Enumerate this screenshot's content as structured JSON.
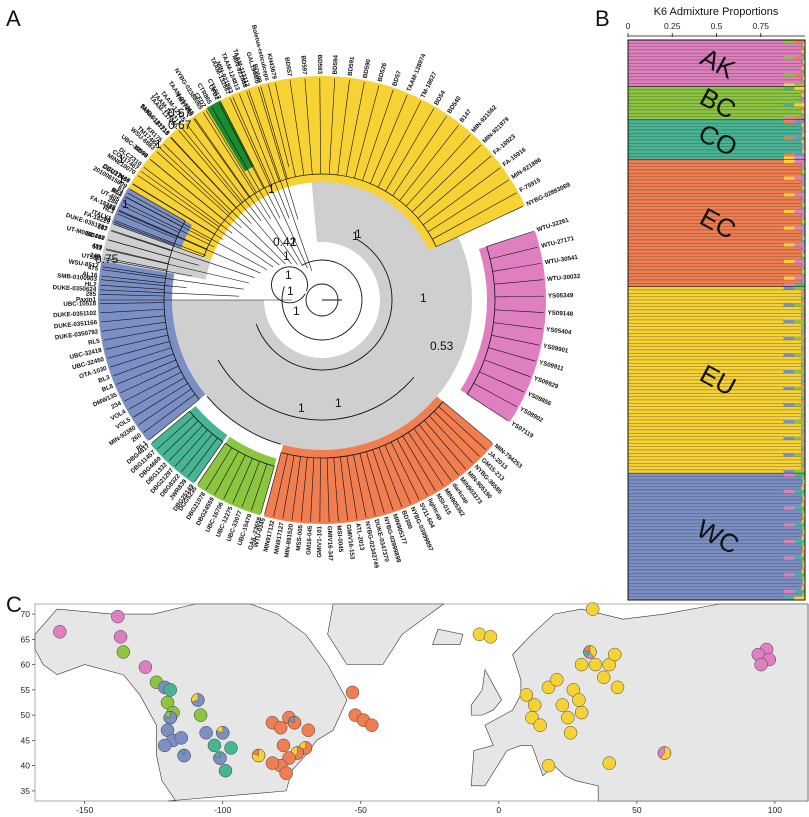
{
  "panels": {
    "a": "A",
    "b": "B",
    "c": "C"
  },
  "colors": {
    "AK": "#e07fc0",
    "BC": "#8cc540",
    "CO": "#47b494",
    "EC": "#f07e50",
    "EU": "#f7d234",
    "WC": "#7b8fc4",
    "dark_green": "#1a8c30",
    "grey": "#cfcfcf"
  },
  "tree": {
    "groups": [
      {
        "key": "EU",
        "tips": [
          "FA-18229",
          "FA-18228",
          "B53",
          "CCU17466",
          "CCU17467",
          "BD98",
          "TM17484",
          "TAAM-127216",
          "TAAM-127217",
          "TM17485",
          "CFD7",
          "CFD2",
          "MIN-921883",
          "MIN-921888",
          "BD599",
          "KH43679",
          "BD557",
          "BD597",
          "BD593",
          "BD594",
          "BD591",
          "BD590",
          "BD526",
          "BD57",
          "TAAM-128974",
          "TM-18627",
          "BD54",
          "BD540",
          "B147",
          "MIN-921562",
          "MIN-921979",
          "FA-18923",
          "FA-15916",
          "MIN-921886",
          "F-75915",
          "NYBG-02883069"
        ]
      },
      {
        "key": "AK",
        "tips": [
          "WTU-32261",
          "WTU-27171",
          "WTU-30541",
          "WTU-30032",
          "YS05349",
          "YS09148",
          "YS05404",
          "YS09901",
          "YS09911",
          "YS09929",
          "YS09856",
          "YS08902",
          "YS07119"
        ]
      },
      {
        "key": "EC",
        "tips": [
          "MIN-794253",
          "JA-2013",
          "GM15-213",
          "NYBG-36585",
          "MIN-905190",
          "MIN903373",
          "darkcap",
          "MIN905362",
          "MSI-015",
          "lightcap",
          "SV11-604",
          "NYBG-03999897",
          "BD300",
          "MIN905177",
          "NYBG-03999898",
          "DUKE-0347370",
          "NYBG-02342749",
          "ATL-2013",
          "GMIV16-153",
          "MSI-0045",
          "GMIV16-347",
          "GMIV1-101",
          "GM16-045",
          "MSS-005",
          "MIN-891520",
          "MIN917127",
          "MIN917132",
          "WTU-0345"
        ]
      },
      {
        "key": "BC",
        "tips": [
          "GAIL-23658",
          "UBC-15479",
          "UBC-33077",
          "UBC-12275",
          "UBC-16706",
          "DBG24559",
          "DBG21078",
          "DGG5235"
        ]
      },
      {
        "key": "CO",
        "tips": [
          "DBG25149",
          "JWR839",
          "DBG8322",
          "DBG21297",
          "DBG1332",
          "DBG4669",
          "DBG11457",
          "DBG4817"
        ]
      },
      {
        "key": "WC",
        "tips": [
          "RL1",
          "260",
          "MIN-92380",
          "VOL5",
          "VOL4",
          "234",
          "DMW135",
          "BL8",
          "BL3",
          "OTA-1030",
          "UBC-32450",
          "UBC-32418",
          "RL5",
          "DUKE-0350792",
          "DUKE-0351166",
          "DUKE-0351102",
          "UBC-10518",
          "285",
          "HL2",
          "AL16",
          "WSU-8517",
          "249",
          "489",
          "BD747",
          "567",
          "90",
          "HL3",
          "286",
          "RL2",
          "20100815009"
        ]
      }
    ],
    "outgroup_tips": [
      "Paxin1",
      "DUKE-0350624",
      "SMB-0100903",
      "475",
      "UT588",
      "511",
      "UT-M0000480",
      "DUKE-0351781",
      "ITALY1",
      "486",
      "UT-405",
      "81",
      "DBG21467",
      "MINE10070",
      "DLC2310",
      "UBC-30989",
      "WSU-6883",
      "KR175",
      "SMB-0181715",
      "TAAM-137090",
      "TAAM-12725",
      "TAAM-054015",
      "NYBG-02388065",
      "CTR865",
      "CT1817",
      "TAAM-132667",
      "TAAM-124813",
      "TAAM-113112",
      "GAL1944fb",
      "Boletus-reticulceps"
    ],
    "support": [
      "0.67",
      "0.67",
      "1",
      "1",
      "1",
      "1",
      "1",
      "0.42",
      "1",
      "0.75",
      "1",
      "1",
      "1",
      "1",
      "1",
      "0.53",
      "1",
      "1",
      "1",
      "1"
    ]
  },
  "admixture": {
    "title": "K6 Admixture Proportions",
    "ticks": [
      "0",
      "0.25",
      "0.5",
      "0.75"
    ],
    "tick_values": [
      0,
      0.25,
      0.5,
      0.75
    ],
    "clusters": [
      {
        "label": "AK",
        "color": "AK",
        "count": 14
      },
      {
        "label": "BC",
        "color": "BC",
        "count": 10
      },
      {
        "label": "CO",
        "color": "CO",
        "count": 12
      },
      {
        "label": "EC",
        "color": "EC",
        "count": 38
      },
      {
        "label": "EU",
        "color": "EU",
        "count": 56
      },
      {
        "label": "WC",
        "color": "WC",
        "count": 38
      }
    ]
  },
  "map": {
    "x_ticks": [
      -150,
      -100,
      -50,
      0,
      50,
      100
    ],
    "y_ticks": [
      35,
      40,
      45,
      50,
      55,
      60,
      65,
      70
    ],
    "x_range": [
      -168,
      112
    ],
    "y_range": [
      33,
      72
    ],
    "pies": [
      {
        "lon": -159,
        "lat": 66.5,
        "p": {
          "AK": 1
        }
      },
      {
        "lon": -138,
        "lat": 69.5,
        "p": {
          "AK": 1
        }
      },
      {
        "lon": -137,
        "lat": 65.5,
        "p": {
          "AK": 1
        }
      },
      {
        "lon": -136,
        "lat": 62.5,
        "p": {
          "BC": 1
        }
      },
      {
        "lon": -128,
        "lat": 59.5,
        "p": {
          "AK": 1
        }
      },
      {
        "lon": -124,
        "lat": 56.5,
        "p": {
          "BC": 1
        }
      },
      {
        "lon": -121,
        "lat": 55.5,
        "p": {
          "WC": 1
        }
      },
      {
        "lon": -119,
        "lat": 55,
        "p": {
          "CO": 1
        }
      },
      {
        "lon": -120,
        "lat": 52.5,
        "p": {
          "BC": 1
        }
      },
      {
        "lon": -118,
        "lat": 50.5,
        "p": {
          "BC": 1
        }
      },
      {
        "lon": -119,
        "lat": 49.5,
        "p": {
          "WC": 0.8,
          "BC": 0.2
        }
      },
      {
        "lon": -120,
        "lat": 47,
        "p": {
          "WC": 1
        }
      },
      {
        "lon": -118,
        "lat": 45,
        "p": {
          "WC": 1
        }
      },
      {
        "lon": -121,
        "lat": 44,
        "p": {
          "WC": 1
        }
      },
      {
        "lon": -115,
        "lat": 45.5,
        "p": {
          "WC": 1
        }
      },
      {
        "lon": -114,
        "lat": 42,
        "p": {
          "WC": 0.9,
          "CO": 0.1
        }
      },
      {
        "lon": -108,
        "lat": 50,
        "p": {
          "BC": 1
        }
      },
      {
        "lon": -109,
        "lat": 53,
        "p": {
          "WC": 0.7,
          "EU": 0.3
        }
      },
      {
        "lon": -106,
        "lat": 46.5,
        "p": {
          "WC": 1
        }
      },
      {
        "lon": -100,
        "lat": 46.5,
        "p": {
          "WC": 0.8,
          "EU": 0.2
        }
      },
      {
        "lon": -103,
        "lat": 44,
        "p": {
          "CO": 1
        }
      },
      {
        "lon": -97,
        "lat": 43.5,
        "p": {
          "CO": 1
        }
      },
      {
        "lon": -101,
        "lat": 41.5,
        "p": {
          "WC": 0.8,
          "CO": 0.2
        }
      },
      {
        "lon": -99,
        "lat": 39,
        "p": {
          "CO": 1
        }
      },
      {
        "lon": -82,
        "lat": 48.5,
        "p": {
          "EC": 1
        }
      },
      {
        "lon": -79,
        "lat": 47.5,
        "p": {
          "EC": 1
        }
      },
      {
        "lon": -76,
        "lat": 49.5,
        "p": {
          "EC": 1
        }
      },
      {
        "lon": -74,
        "lat": 48.5,
        "p": {
          "EC": 0.8,
          "WC": 0.2
        }
      },
      {
        "lon": -69,
        "lat": 47,
        "p": {
          "EC": 1
        }
      },
      {
        "lon": -70,
        "lat": 43.5,
        "p": {
          "EC": 0.7,
          "EU": 0.3
        }
      },
      {
        "lon": -73,
        "lat": 42.5,
        "p": {
          "EC": 0.6,
          "EU": 0.4
        }
      },
      {
        "lon": -78,
        "lat": 44,
        "p": {
          "EC": 1
        }
      },
      {
        "lon": -76,
        "lat": 41.5,
        "p": {
          "EC": 1
        }
      },
      {
        "lon": -79,
        "lat": 40,
        "p": {
          "EC": 1
        }
      },
      {
        "lon": -77,
        "lat": 38.5,
        "p": {
          "EC": 1
        }
      },
      {
        "lon": -82,
        "lat": 40.5,
        "p": {
          "EC": 1
        }
      },
      {
        "lon": -87,
        "lat": 42,
        "p": {
          "EU": 0.8,
          "EC": 0.2
        }
      },
      {
        "lon": -53,
        "lat": 54.5,
        "p": {
          "EC": 1
        }
      },
      {
        "lon": -52,
        "lat": 50,
        "p": {
          "EC": 1
        }
      },
      {
        "lon": -49,
        "lat": 49,
        "p": {
          "EC": 1
        }
      },
      {
        "lon": -46,
        "lat": 48,
        "p": {
          "EC": 1
        }
      },
      {
        "lon": -7,
        "lat": 66,
        "p": {
          "EU": 1
        }
      },
      {
        "lon": -3,
        "lat": 65.5,
        "p": {
          "EU": 1
        }
      },
      {
        "lon": 10,
        "lat": 54,
        "p": {
          "EU": 1
        }
      },
      {
        "lon": 13,
        "lat": 52,
        "p": {
          "EU": 1
        }
      },
      {
        "lon": 12,
        "lat": 49.5,
        "p": {
          "EU": 1
        }
      },
      {
        "lon": 15,
        "lat": 48,
        "p": {
          "EU": 1
        }
      },
      {
        "lon": 18,
        "lat": 55.5,
        "p": {
          "EU": 1
        }
      },
      {
        "lon": 21,
        "lat": 57,
        "p": {
          "EU": 1
        }
      },
      {
        "lon": 23,
        "lat": 52,
        "p": {
          "EU": 1
        }
      },
      {
        "lon": 27,
        "lat": 55,
        "p": {
          "EU": 1
        }
      },
      {
        "lon": 29,
        "lat": 53,
        "p": {
          "EU": 1
        }
      },
      {
        "lon": 25,
        "lat": 49.5,
        "p": {
          "EU": 1
        }
      },
      {
        "lon": 30,
        "lat": 50.5,
        "p": {
          "EU": 1
        }
      },
      {
        "lon": 26,
        "lat": 46.5,
        "p": {
          "EU": 1
        }
      },
      {
        "lon": 30,
        "lat": 60,
        "p": {
          "EU": 1
        }
      },
      {
        "lon": 33,
        "lat": 62.5,
        "p": {
          "EU": 0.4,
          "AK": 0.2,
          "CO": 0.2,
          "EC": 0.2
        }
      },
      {
        "lon": 35,
        "lat": 60,
        "p": {
          "EU": 1
        }
      },
      {
        "lon": 38,
        "lat": 57.5,
        "p": {
          "EU": 1
        }
      },
      {
        "lon": 40,
        "lat": 60,
        "p": {
          "EU": 1
        }
      },
      {
        "lon": 42,
        "lat": 62,
        "p": {
          "EU": 1
        }
      },
      {
        "lon": 43,
        "lat": 55.5,
        "p": {
          "EU": 1
        }
      },
      {
        "lon": 34,
        "lat": 71,
        "p": {
          "EU": 1
        }
      },
      {
        "lon": 18,
        "lat": 40,
        "p": {
          "EU": 1
        }
      },
      {
        "lon": 40,
        "lat": 40.5,
        "p": {
          "EU": 1
        }
      },
      {
        "lon": 60,
        "lat": 42.5,
        "p": {
          "EU": 0.6,
          "AK": 0.4
        }
      },
      {
        "lon": 97,
        "lat": 63,
        "p": {
          "AK": 1
        }
      },
      {
        "lon": 94,
        "lat": 62,
        "p": {
          "AK": 1
        }
      },
      {
        "lon": 98,
        "lat": 61,
        "p": {
          "AK": 1
        }
      },
      {
        "lon": 95,
        "lat": 60,
        "p": {
          "AK": 1
        }
      }
    ]
  }
}
